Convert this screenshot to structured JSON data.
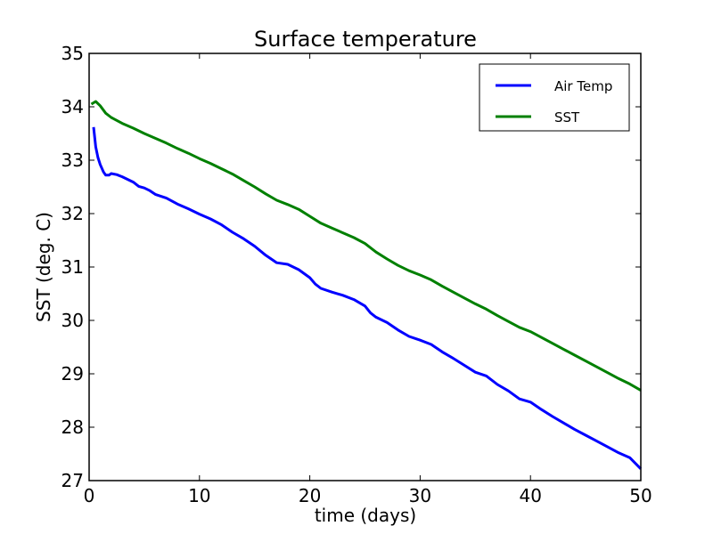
{
  "chart_data": {
    "type": "line",
    "title": "Surface temperature",
    "xlabel": "time (days)",
    "ylabel": "SST (deg. C)",
    "xlim": [
      0,
      50
    ],
    "ylim": [
      27,
      35
    ],
    "xticks": [
      0,
      10,
      20,
      30,
      40,
      50
    ],
    "yticks": [
      27,
      28,
      29,
      30,
      31,
      32,
      33,
      34,
      35
    ],
    "grid": false,
    "legend_position": "top-right",
    "series": [
      {
        "name": "Air Temp",
        "color": "#0000ff",
        "points": [
          [
            0.4,
            33.62
          ],
          [
            0.6,
            33.25
          ],
          [
            0.8,
            33.05
          ],
          [
            1.0,
            32.92
          ],
          [
            1.3,
            32.78
          ],
          [
            1.5,
            32.72
          ],
          [
            1.8,
            32.72
          ],
          [
            2.0,
            32.75
          ],
          [
            2.5,
            32.73
          ],
          [
            3.0,
            32.69
          ],
          [
            3.5,
            32.64
          ],
          [
            4.0,
            32.59
          ],
          [
            4.5,
            32.51
          ],
          [
            5.0,
            32.48
          ],
          [
            5.5,
            32.43
          ],
          [
            6.0,
            32.36
          ],
          [
            7.0,
            32.29
          ],
          [
            8.0,
            32.18
          ],
          [
            9.0,
            32.09
          ],
          [
            10.0,
            31.99
          ],
          [
            11.0,
            31.9
          ],
          [
            12.0,
            31.79
          ],
          [
            13.0,
            31.65
          ],
          [
            14.0,
            31.53
          ],
          [
            15.0,
            31.39
          ],
          [
            16.0,
            31.22
          ],
          [
            17.0,
            31.08
          ],
          [
            18.0,
            31.05
          ],
          [
            19.0,
            30.95
          ],
          [
            20.0,
            30.8
          ],
          [
            20.5,
            30.68
          ],
          [
            21.0,
            30.6
          ],
          [
            22.0,
            30.53
          ],
          [
            23.0,
            30.47
          ],
          [
            24.0,
            30.39
          ],
          [
            25.0,
            30.27
          ],
          [
            25.5,
            30.14
          ],
          [
            26.0,
            30.06
          ],
          [
            27.0,
            29.96
          ],
          [
            28.0,
            29.82
          ],
          [
            29.0,
            29.7
          ],
          [
            30.0,
            29.63
          ],
          [
            31.0,
            29.55
          ],
          [
            32.0,
            29.41
          ],
          [
            33.0,
            29.29
          ],
          [
            34.0,
            29.16
          ],
          [
            35.0,
            29.03
          ],
          [
            36.0,
            28.96
          ],
          [
            37.0,
            28.8
          ],
          [
            38.0,
            28.68
          ],
          [
            39.0,
            28.53
          ],
          [
            40.0,
            28.47
          ],
          [
            41.0,
            28.33
          ],
          [
            42.0,
            28.2
          ],
          [
            43.0,
            28.08
          ],
          [
            44.0,
            27.96
          ],
          [
            45.0,
            27.85
          ],
          [
            46.0,
            27.74
          ],
          [
            47.0,
            27.63
          ],
          [
            48.0,
            27.52
          ],
          [
            49.0,
            27.43
          ],
          [
            50.0,
            27.22
          ]
        ]
      },
      {
        "name": "SST",
        "color": "#008000",
        "points": [
          [
            0.2,
            34.05
          ],
          [
            0.6,
            34.1
          ],
          [
            1.0,
            34.02
          ],
          [
            1.5,
            33.88
          ],
          [
            2.0,
            33.8
          ],
          [
            3.0,
            33.69
          ],
          [
            4.0,
            33.6
          ],
          [
            5.0,
            33.5
          ],
          [
            6.0,
            33.41
          ],
          [
            7.0,
            33.32
          ],
          [
            8.0,
            33.22
          ],
          [
            9.0,
            33.13
          ],
          [
            10.0,
            33.03
          ],
          [
            11.0,
            32.94
          ],
          [
            12.0,
            32.84
          ],
          [
            13.0,
            32.74
          ],
          [
            14.0,
            32.62
          ],
          [
            15.0,
            32.5
          ],
          [
            16.0,
            32.37
          ],
          [
            17.0,
            32.25
          ],
          [
            18.0,
            32.17
          ],
          [
            19.0,
            32.08
          ],
          [
            20.0,
            31.95
          ],
          [
            21.0,
            31.82
          ],
          [
            22.0,
            31.73
          ],
          [
            23.0,
            31.64
          ],
          [
            24.0,
            31.55
          ],
          [
            25.0,
            31.44
          ],
          [
            26.0,
            31.28
          ],
          [
            27.0,
            31.15
          ],
          [
            28.0,
            31.03
          ],
          [
            29.0,
            30.93
          ],
          [
            30.0,
            30.85
          ],
          [
            31.0,
            30.76
          ],
          [
            32.0,
            30.64
          ],
          [
            33.0,
            30.53
          ],
          [
            34.0,
            30.42
          ],
          [
            35.0,
            30.31
          ],
          [
            36.0,
            30.21
          ],
          [
            37.0,
            30.09
          ],
          [
            38.0,
            29.98
          ],
          [
            39.0,
            29.87
          ],
          [
            40.0,
            29.79
          ],
          [
            41.0,
            29.68
          ],
          [
            42.0,
            29.57
          ],
          [
            43.0,
            29.46
          ],
          [
            44.0,
            29.35
          ],
          [
            45.0,
            29.24
          ],
          [
            46.0,
            29.13
          ],
          [
            47.0,
            29.02
          ],
          [
            48.0,
            28.91
          ],
          [
            49.0,
            28.81
          ],
          [
            50.0,
            28.69
          ]
        ]
      }
    ]
  }
}
